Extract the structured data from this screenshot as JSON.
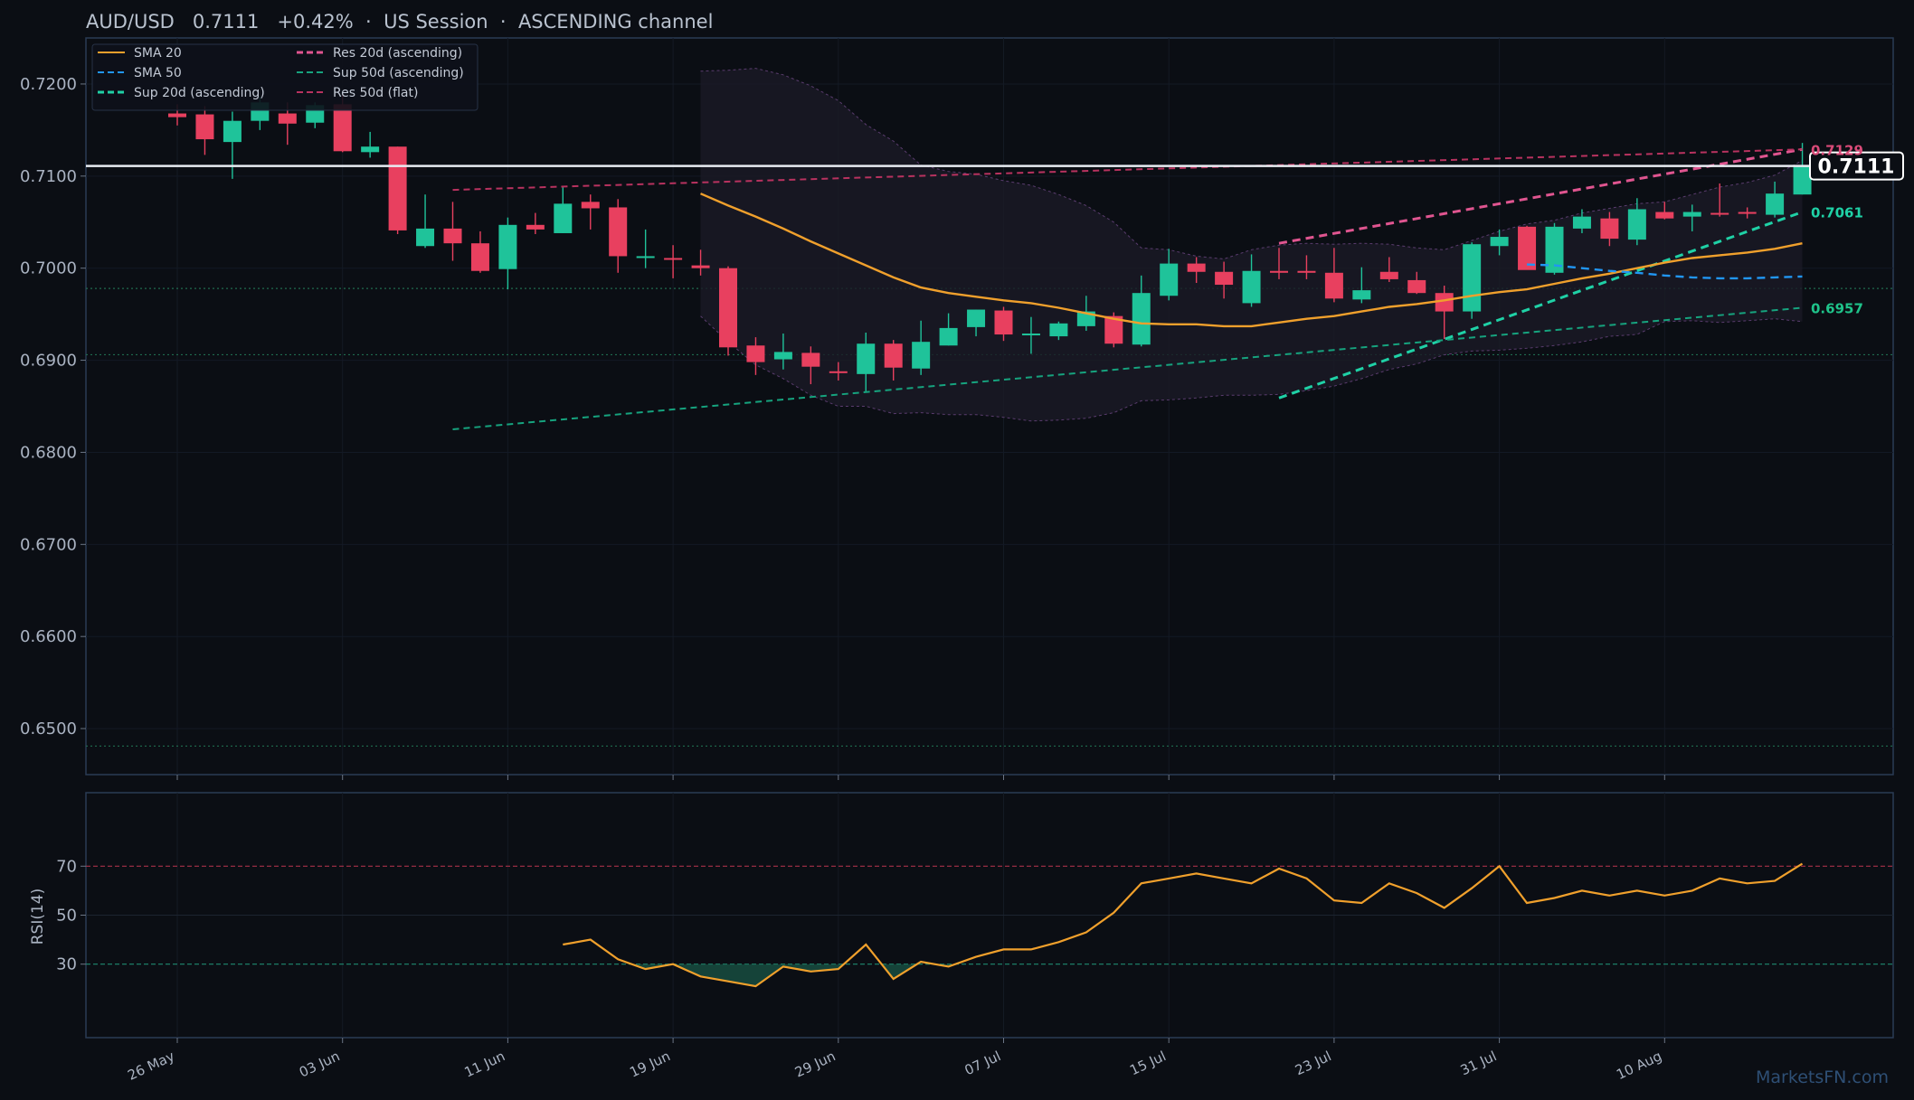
{
  "header": {
    "title": "AUD/USD   0.7111   +0.42%  ·  US Session  ·  ASCENDING channel"
  },
  "watermark": "MarketsFN.com",
  "colors": {
    "background": "#0b0e14",
    "panel_border": "#2a3b55",
    "up": "#1fc39a",
    "down": "#e8405f",
    "sma20": "#f0a02c",
    "sma50": "#2196f3",
    "res20": "#e05590",
    "sup20": "#1fd1a6",
    "res50": "#b8325f",
    "sup50": "#16a37e",
    "rsi": "#f0a02c"
  },
  "chart_data": [
    {
      "type": "candlestick",
      "name": "price",
      "ylim": [
        0.645,
        0.725
      ],
      "y_ticks": [
        "0.6500",
        "0.6600",
        "0.6700",
        "0.6800",
        "0.6900",
        "0.7000",
        "0.7100",
        "0.7200"
      ],
      "x_ticks": [
        {
          "label": "26 May",
          "index": 0
        },
        {
          "label": "03 Jun",
          "index": 6
        },
        {
          "label": "11 Jun",
          "index": 12
        },
        {
          "label": "19 Jun",
          "index": 18
        },
        {
          "label": "29 Jun",
          "index": 24
        },
        {
          "label": "07 Jul",
          "index": 30
        },
        {
          "label": "15 Jul",
          "index": 36
        },
        {
          "label": "23 Jul",
          "index": 42
        },
        {
          "label": "31 Jul",
          "index": 48
        },
        {
          "label": "10 Aug",
          "index": 54
        }
      ],
      "candles": [
        {
          "o": 0.7168,
          "h": 0.7178,
          "l": 0.7155,
          "c": 0.7164
        },
        {
          "o": 0.7167,
          "h": 0.7176,
          "l": 0.7123,
          "c": 0.714
        },
        {
          "o": 0.7137,
          "h": 0.717,
          "l": 0.7097,
          "c": 0.716
        },
        {
          "o": 0.716,
          "h": 0.7186,
          "l": 0.715,
          "c": 0.718
        },
        {
          "o": 0.7168,
          "h": 0.718,
          "l": 0.7134,
          "c": 0.7157
        },
        {
          "o": 0.7158,
          "h": 0.718,
          "l": 0.7152,
          "c": 0.7177
        },
        {
          "o": 0.7178,
          "h": 0.719,
          "l": 0.7126,
          "c": 0.7127
        },
        {
          "o": 0.7126,
          "h": 0.7148,
          "l": 0.712,
          "c": 0.7132
        },
        {
          "o": 0.7132,
          "h": 0.7132,
          "l": 0.7037,
          "c": 0.7041
        },
        {
          "o": 0.7024,
          "h": 0.708,
          "l": 0.7022,
          "c": 0.7043
        },
        {
          "o": 0.7043,
          "h": 0.7072,
          "l": 0.7008,
          "c": 0.7027
        },
        {
          "o": 0.7027,
          "h": 0.704,
          "l": 0.6995,
          "c": 0.6997
        },
        {
          "o": 0.6999,
          "h": 0.7055,
          "l": 0.6977,
          "c": 0.7047
        },
        {
          "o": 0.7047,
          "h": 0.706,
          "l": 0.7037,
          "c": 0.7042
        },
        {
          "o": 0.7038,
          "h": 0.7088,
          "l": 0.7038,
          "c": 0.707
        },
        {
          "o": 0.7072,
          "h": 0.708,
          "l": 0.7042,
          "c": 0.7065
        },
        {
          "o": 0.7066,
          "h": 0.7075,
          "l": 0.6995,
          "c": 0.7013
        },
        {
          "o": 0.7012,
          "h": 0.7042,
          "l": 0.7,
          "c": 0.7013
        },
        {
          "o": 0.7011,
          "h": 0.7025,
          "l": 0.6989,
          "c": 0.701
        },
        {
          "o": 0.7003,
          "h": 0.702,
          "l": 0.6992,
          "c": 0.7
        },
        {
          "o": 0.7,
          "h": 0.7002,
          "l": 0.6905,
          "c": 0.6914
        },
        {
          "o": 0.6916,
          "h": 0.6925,
          "l": 0.6884,
          "c": 0.6898
        },
        {
          "o": 0.6901,
          "h": 0.6929,
          "l": 0.689,
          "c": 0.6909
        },
        {
          "o": 0.6908,
          "h": 0.6915,
          "l": 0.6874,
          "c": 0.6893
        },
        {
          "o": 0.6888,
          "h": 0.6898,
          "l": 0.6878,
          "c": 0.6887
        },
        {
          "o": 0.6885,
          "h": 0.693,
          "l": 0.6866,
          "c": 0.6918
        },
        {
          "o": 0.6918,
          "h": 0.6922,
          "l": 0.6878,
          "c": 0.6892
        },
        {
          "o": 0.6891,
          "h": 0.6943,
          "l": 0.6884,
          "c": 0.692
        },
        {
          "o": 0.6916,
          "h": 0.6951,
          "l": 0.6916,
          "c": 0.6935
        },
        {
          "o": 0.6936,
          "h": 0.6955,
          "l": 0.6926,
          "c": 0.6955
        },
        {
          "o": 0.6954,
          "h": 0.6958,
          "l": 0.6921,
          "c": 0.6928
        },
        {
          "o": 0.6928,
          "h": 0.6947,
          "l": 0.6907,
          "c": 0.6929
        },
        {
          "o": 0.6926,
          "h": 0.6942,
          "l": 0.6922,
          "c": 0.694
        },
        {
          "o": 0.6937,
          "h": 0.697,
          "l": 0.6932,
          "c": 0.6953
        },
        {
          "o": 0.6948,
          "h": 0.6952,
          "l": 0.6914,
          "c": 0.6918
        },
        {
          "o": 0.6917,
          "h": 0.6992,
          "l": 0.6915,
          "c": 0.6973
        },
        {
          "o": 0.697,
          "h": 0.7021,
          "l": 0.6965,
          "c": 0.7005
        },
        {
          "o": 0.7005,
          "h": 0.7012,
          "l": 0.6984,
          "c": 0.6996
        },
        {
          "o": 0.6996,
          "h": 0.7007,
          "l": 0.6967,
          "c": 0.6982
        },
        {
          "o": 0.6962,
          "h": 0.7015,
          "l": 0.6958,
          "c": 0.6997
        },
        {
          "o": 0.6997,
          "h": 0.7022,
          "l": 0.6988,
          "c": 0.6995
        },
        {
          "o": 0.6997,
          "h": 0.7014,
          "l": 0.6988,
          "c": 0.6995
        },
        {
          "o": 0.6995,
          "h": 0.7022,
          "l": 0.6963,
          "c": 0.6967
        },
        {
          "o": 0.6966,
          "h": 0.7001,
          "l": 0.6962,
          "c": 0.6976
        },
        {
          "o": 0.6996,
          "h": 0.7012,
          "l": 0.6985,
          "c": 0.6988
        },
        {
          "o": 0.6987,
          "h": 0.6996,
          "l": 0.6972,
          "c": 0.6973
        },
        {
          "o": 0.6973,
          "h": 0.6981,
          "l": 0.6923,
          "c": 0.6953
        },
        {
          "o": 0.6953,
          "h": 0.7028,
          "l": 0.6945,
          "c": 0.7026
        },
        {
          "o": 0.7024,
          "h": 0.7042,
          "l": 0.7014,
          "c": 0.7034
        },
        {
          "o": 0.7045,
          "h": 0.7046,
          "l": 0.7,
          "c": 0.6998
        },
        {
          "o": 0.6995,
          "h": 0.7049,
          "l": 0.6993,
          "c": 0.7045
        },
        {
          "o": 0.7043,
          "h": 0.7064,
          "l": 0.7038,
          "c": 0.7056
        },
        {
          "o": 0.7054,
          "h": 0.7061,
          "l": 0.7024,
          "c": 0.7032
        },
        {
          "o": 0.7031,
          "h": 0.7076,
          "l": 0.7025,
          "c": 0.7064
        },
        {
          "o": 0.7061,
          "h": 0.7072,
          "l": 0.7053,
          "c": 0.7054
        },
        {
          "o": 0.7056,
          "h": 0.7069,
          "l": 0.704,
          "c": 0.7061
        },
        {
          "o": 0.706,
          "h": 0.7092,
          "l": 0.7056,
          "c": 0.7059
        },
        {
          "o": 0.7061,
          "h": 0.7066,
          "l": 0.7054,
          "c": 0.7059
        },
        {
          "o": 0.7058,
          "h": 0.7094,
          "l": 0.7055,
          "c": 0.7081
        },
        {
          "o": 0.708,
          "h": 0.7136,
          "l": 0.708,
          "c": 0.7111
        }
      ],
      "sma20": {
        "start_index": 19,
        "values": [
          0.7081,
          0.7068,
          0.7056,
          0.7043,
          0.7029,
          0.7016,
          0.7003,
          0.699,
          0.6979,
          0.6973,
          0.6969,
          0.6965,
          0.6962,
          0.6957,
          0.6951,
          0.6945,
          0.694,
          0.6939,
          0.6939,
          0.6937,
          0.6937,
          0.6941,
          0.6945,
          0.6948,
          0.6953,
          0.6958,
          0.6961,
          0.6965,
          0.697,
          0.6974,
          0.6977,
          0.6983,
          0.6989,
          0.6994,
          0.7,
          0.7006,
          0.7011,
          0.7014,
          0.7017,
          0.7021,
          0.7027
        ]
      },
      "sma50": {
        "start_index": 49,
        "values": [
          0.7004,
          0.7003,
          0.7,
          0.6997,
          0.6995,
          0.6992,
          0.699,
          0.6989,
          0.6989,
          0.699,
          0.6991
        ]
      },
      "bands": {
        "start_index": 19,
        "upper": [
          0.7214,
          0.7215,
          0.7217,
          0.721,
          0.7198,
          0.7182,
          0.7156,
          0.7138,
          0.7112,
          0.7105,
          0.7102,
          0.7095,
          0.709,
          0.708,
          0.7068,
          0.705,
          0.7022,
          0.702,
          0.7013,
          0.701,
          0.702,
          0.7025,
          0.7027,
          0.7026,
          0.7027,
          0.7026,
          0.7022,
          0.702,
          0.703,
          0.704,
          0.7048,
          0.7052,
          0.706,
          0.7065,
          0.707,
          0.7072,
          0.708,
          0.7088,
          0.7093,
          0.7101,
          0.7117
        ],
        "lower": [
          0.6948,
          0.692,
          0.6895,
          0.688,
          0.6862,
          0.685,
          0.685,
          0.6842,
          0.6843,
          0.6841,
          0.6841,
          0.6838,
          0.6834,
          0.6835,
          0.6837,
          0.6843,
          0.6856,
          0.6857,
          0.6859,
          0.6862,
          0.6862,
          0.6863,
          0.6867,
          0.6872,
          0.688,
          0.689,
          0.6896,
          0.6906,
          0.691,
          0.6911,
          0.6913,
          0.6916,
          0.692,
          0.6926,
          0.6928,
          0.6942,
          0.6943,
          0.6941,
          0.6943,
          0.6945,
          0.6942
        ]
      },
      "trendlines": [
        {
          "name": "Res 20d (ascending)",
          "from": [
            40,
            0.7027
          ],
          "to": [
            59,
            0.7129
          ],
          "style": "res20"
        },
        {
          "name": "Sup 20d (ascending)",
          "from": [
            40,
            0.6859
          ],
          "to": [
            59,
            0.7061
          ],
          "style": "sup20"
        },
        {
          "name": "Res 50d (flat)",
          "from": [
            10,
            0.7085
          ],
          "to": [
            59,
            0.7129
          ],
          "style": "res50"
        },
        {
          "name": "Sup 50d (ascending)",
          "from": [
            10,
            0.6825
          ],
          "to": [
            59,
            0.6957
          ],
          "style": "sup50"
        }
      ],
      "level_lines": [
        0.6978,
        0.6906,
        0.6481
      ],
      "last_price": 0.7111,
      "last_price_label": "0.7111",
      "right_labels": [
        {
          "text": "0.7129",
          "value": 0.7129,
          "style": "res50"
        },
        {
          "text": "0.7061",
          "value": 0.7061,
          "style": "sup20"
        },
        {
          "text": "0.6957",
          "value": 0.6957,
          "style": "sup50"
        }
      ],
      "legend": {
        "position": "top-left",
        "items": [
          {
            "label": "SMA 20",
            "style": "sma20",
            "dash": "solid"
          },
          {
            "label": "Res 20d (ascending)",
            "style": "res20",
            "dash": "dashed-thick"
          },
          {
            "label": "SMA 50",
            "style": "sma50",
            "dash": "dashed"
          },
          {
            "label": "Sup 50d (ascending)",
            "style": "sup50",
            "dash": "dashed"
          },
          {
            "label": "Sup 20d (ascending)",
            "style": "sup20",
            "dash": "dashed-thick"
          },
          {
            "label": "Res 50d (flat)",
            "style": "res50",
            "dash": "dashed"
          }
        ]
      }
    },
    {
      "type": "line",
      "name": "rsi",
      "ylabel": "RSI(14)",
      "ylim": [
        0,
        100
      ],
      "y_ticks": [
        "30",
        "50",
        "70"
      ],
      "overbought": 70,
      "oversold": 30,
      "start_index": 14,
      "values": [
        38,
        40,
        32,
        28,
        30,
        25,
        23,
        21,
        29,
        27,
        28,
        38,
        24,
        31,
        29,
        33,
        36,
        36,
        39,
        43,
        51,
        63,
        65,
        67,
        65,
        63,
        69,
        65,
        56,
        55,
        63,
        59,
        53,
        61,
        70,
        55,
        57,
        60,
        58,
        60,
        58,
        60,
        65,
        63,
        64,
        71
      ]
    }
  ]
}
